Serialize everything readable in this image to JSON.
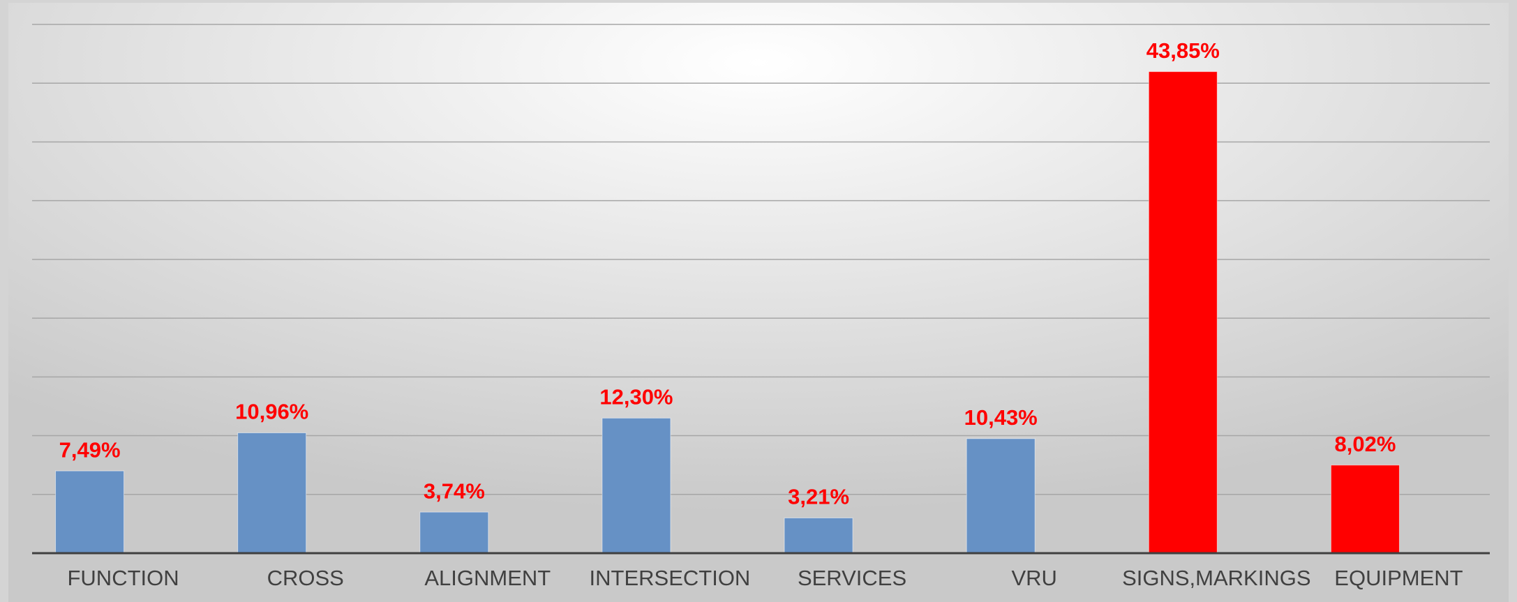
{
  "chart_data": {
    "type": "bar",
    "categories": [
      "FUNCTION",
      "CROSS",
      "ALIGNMENT",
      "INTERSECTION",
      "SERVICES",
      "VRU",
      "SIGNS,MARKINGS",
      "EQUIPMENT"
    ],
    "values": [
      7.49,
      10.96,
      3.74,
      12.3,
      3.21,
      10.43,
      43.85,
      8.02
    ],
    "value_labels": [
      "7,49%",
      "10,96%",
      "3,74%",
      "12,30%",
      "3,21%",
      "10,43%",
      "43,85%",
      "8,02%"
    ],
    "colors": [
      "#6691c5",
      "#6691c5",
      "#6691c5",
      "#6691c5",
      "#6691c5",
      "#6691c5",
      "#ff0000",
      "#ff0000"
    ],
    "label_color": "#ff0000",
    "ylim": [
      0,
      48.15
    ],
    "yticks": [
      0,
      5.35,
      10.7,
      16.05,
      21.4,
      26.75,
      32.1,
      37.45,
      42.8,
      48.15
    ],
    "grid": true
  }
}
